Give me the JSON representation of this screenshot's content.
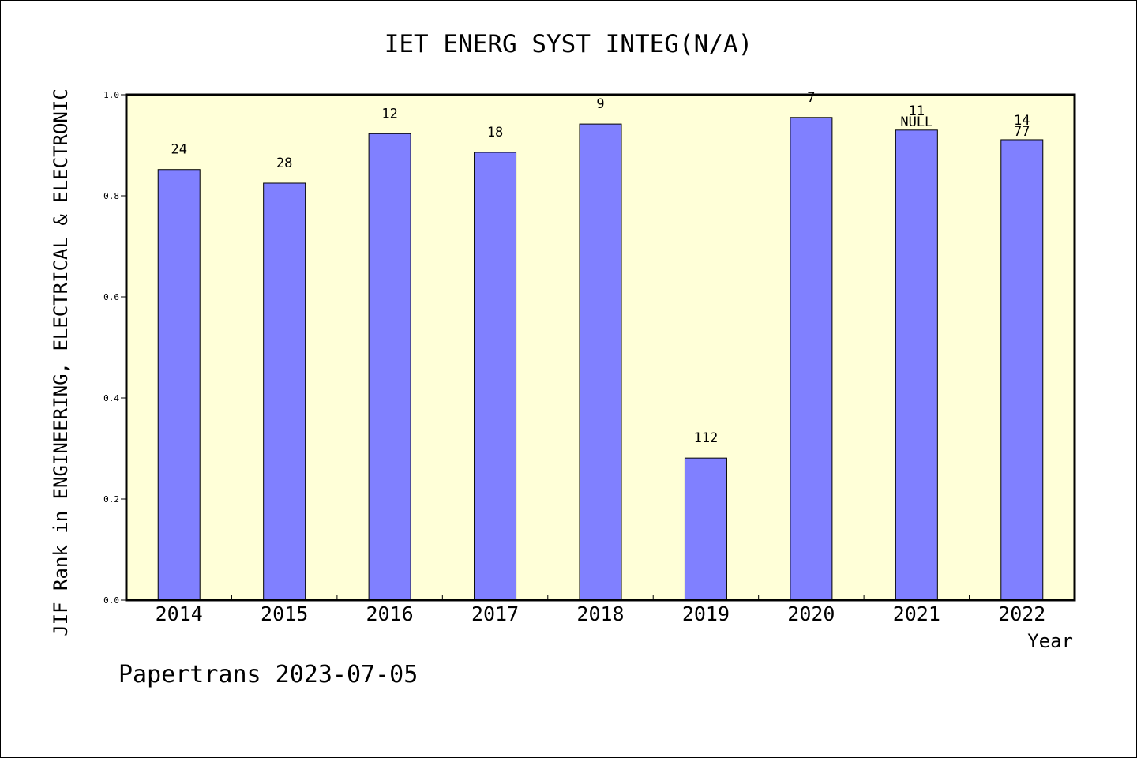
{
  "chart_data": {
    "type": "bar",
    "title": "IET ENERG SYST INTEG(N/A)",
    "xlabel": "Year",
    "ylabel": "JIF Rank in ENGINEERING, ELECTRICAL & ELECTRONIC",
    "ylim": [
      0,
      1.0
    ],
    "yticks": [
      "0.0",
      "0.2",
      "0.4",
      "0.6",
      "0.8",
      "1.0"
    ],
    "grid": false,
    "categories": [
      "2014",
      "2015",
      "2016",
      "2017",
      "2018",
      "2019",
      "2020",
      "2021",
      "2022"
    ],
    "values": [
      0.852,
      0.825,
      0.923,
      0.886,
      0.942,
      0.281,
      0.955,
      0.93,
      0.911
    ],
    "bar_labels": [
      "24",
      "28",
      "12",
      "18",
      "9",
      "112",
      "7",
      "11",
      "14"
    ],
    "bar_sublabels": [
      "",
      "",
      "",
      "",
      "",
      "",
      "",
      "NULL",
      "77"
    ],
    "colors": {
      "bar": "#8080ff",
      "plot_bg": "#ffffd8"
    }
  },
  "footer": "Papertrans 2023-07-05"
}
